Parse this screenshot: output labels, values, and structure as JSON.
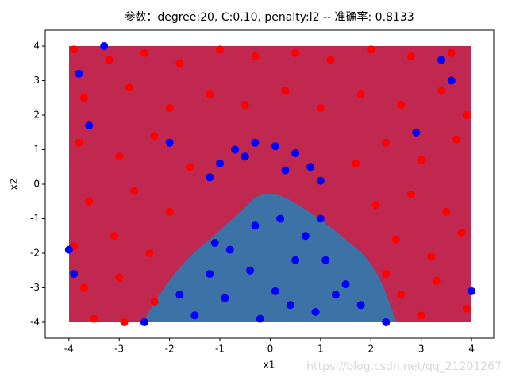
{
  "chart_data": {
    "type": "scatter",
    "title": "参数：degree:20, C:0.10, penalty:l2 -- 准确率: 0.8133",
    "x_label": "x1",
    "y_label": "x2",
    "watermark": "https://blog.csdn.net/qq_21201267",
    "xlim": [
      -4.47,
      4.44
    ],
    "ylim": [
      -4.46,
      4.46
    ],
    "xticks": [
      -4,
      -3,
      -2,
      -1,
      0,
      1,
      2,
      3,
      4
    ],
    "yticks": [
      -4,
      -3,
      -2,
      -1,
      0,
      1,
      2,
      3,
      4
    ],
    "series": [
      {
        "color": "#ff0000",
        "x": [
          -3.9,
          -3.2,
          -2.5,
          -1.8,
          -1.0,
          -0.3,
          0.5,
          1.2,
          2.0,
          2.8,
          3.6,
          -3.7,
          -2.8,
          -2.0,
          -1.2,
          -0.5,
          0.3,
          1.0,
          1.8,
          2.6,
          3.4,
          3.9,
          -3.8,
          -3.0,
          -2.3,
          -1.6,
          1.7,
          2.3,
          3.0,
          3.7,
          -3.6,
          -2.7,
          -2.0,
          2.1,
          2.8,
          3.5,
          -3.9,
          -3.1,
          -2.4,
          2.5,
          3.2,
          3.8,
          -3.7,
          -3.0,
          -2.3,
          2.6,
          3.3,
          3.9,
          -3.5,
          -2.9,
          2.3,
          3.0
        ],
        "values": [
          3.9,
          3.6,
          3.8,
          3.5,
          3.9,
          3.7,
          3.8,
          3.6,
          3.9,
          3.7,
          3.8,
          2.5,
          2.8,
          2.2,
          2.6,
          2.3,
          2.7,
          2.2,
          2.6,
          2.3,
          2.7,
          2.0,
          1.2,
          0.8,
          1.4,
          0.5,
          0.6,
          1.2,
          0.7,
          1.3,
          -0.5,
          -0.2,
          -0.8,
          -0.6,
          -0.3,
          -0.8,
          -1.8,
          -1.5,
          -2.0,
          -1.6,
          -2.1,
          -1.4,
          -3.0,
          -2.7,
          -3.4,
          -3.2,
          -2.8,
          -3.6,
          -3.9,
          -4.0,
          -2.6,
          -3.8
        ]
      },
      {
        "color": "#0000ff",
        "x": [
          -1.5,
          -1.8,
          -1.2,
          -0.8,
          -0.3,
          0.2,
          0.7,
          1.1,
          1.5,
          1.8,
          -0.9,
          -0.4,
          0.1,
          0.5,
          0.9,
          1.3,
          -0.2,
          0.4,
          -1.1,
          1.0,
          -1.2,
          -1.0,
          -0.7,
          -0.3,
          0.1,
          0.5,
          0.8,
          1.0,
          -0.5,
          0.3,
          -3.8,
          -3.3,
          -3.6,
          -2.0,
          3.6,
          2.9,
          -3.9,
          4.0,
          -2.5,
          3.4,
          -4.0,
          2.3
        ],
        "values": [
          -3.8,
          -3.2,
          -2.6,
          -1.9,
          -1.2,
          -1.0,
          -1.5,
          -2.2,
          -2.9,
          -3.5,
          -3.3,
          -2.5,
          -3.1,
          -2.2,
          -3.7,
          -3.2,
          -3.9,
          -3.5,
          -1.7,
          -1.0,
          0.2,
          0.6,
          1.0,
          1.2,
          1.1,
          0.9,
          0.5,
          0.1,
          0.8,
          0.4,
          3.2,
          4.0,
          1.7,
          1.2,
          3.0,
          1.5,
          -2.6,
          -3.1,
          -4.0,
          3.6,
          -1.9,
          -4.0
        ]
      }
    ]
  }
}
